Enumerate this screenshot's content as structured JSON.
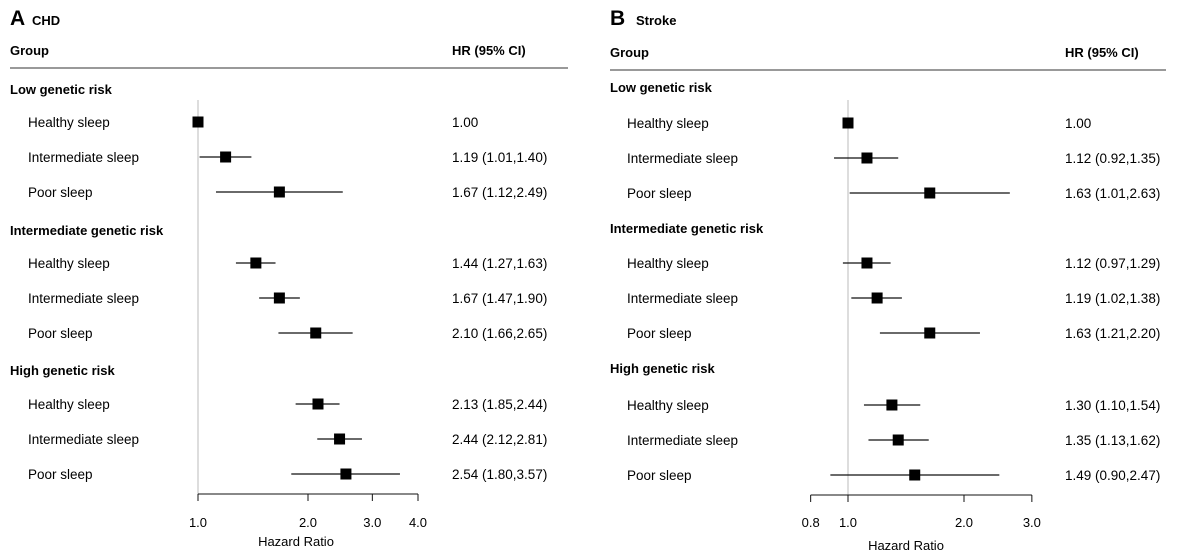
{
  "chart_data": [
    {
      "type": "forest",
      "panel_letter": "A",
      "title": "CHD",
      "header_group": "Group",
      "header_hr": "HR (95% CI)",
      "xlabel": "Hazard Ratio",
      "log_scale": true,
      "xlim": [
        1.0,
        4.0
      ],
      "reference_line": 1.0,
      "ticks": [
        1.0,
        2.0,
        3.0,
        4.0
      ],
      "tick_labels": [
        "1.0",
        "2.0",
        "3.0",
        "4.0"
      ],
      "groups": [
        {
          "name": "Low genetic risk",
          "rows": [
            {
              "label": "Healthy sleep",
              "hr": 1.0,
              "lo": 1.0,
              "hi": 1.0,
              "text": "1.00"
            },
            {
              "label": "Intermediate sleep",
              "hr": 1.19,
              "lo": 1.01,
              "hi": 1.4,
              "text": "1.19 (1.01,1.40)"
            },
            {
              "label": "Poor sleep",
              "hr": 1.67,
              "lo": 1.12,
              "hi": 2.49,
              "text": "1.67 (1.12,2.49)"
            }
          ]
        },
        {
          "name": "Intermediate genetic risk",
          "rows": [
            {
              "label": "Healthy sleep",
              "hr": 1.44,
              "lo": 1.27,
              "hi": 1.63,
              "text": "1.44 (1.27,1.63)"
            },
            {
              "label": "Intermediate sleep",
              "hr": 1.67,
              "lo": 1.47,
              "hi": 1.9,
              "text": "1.67 (1.47,1.90)"
            },
            {
              "label": "Poor sleep",
              "hr": 2.1,
              "lo": 1.66,
              "hi": 2.65,
              "text": "2.10 (1.66,2.65)"
            }
          ]
        },
        {
          "name": "High genetic risk",
          "rows": [
            {
              "label": "Healthy sleep",
              "hr": 2.13,
              "lo": 1.85,
              "hi": 2.44,
              "text": "2.13 (1.85,2.44)"
            },
            {
              "label": "Intermediate sleep",
              "hr": 2.44,
              "lo": 2.12,
              "hi": 2.81,
              "text": "2.44 (2.12,2.81)"
            },
            {
              "label": "Poor sleep",
              "hr": 2.54,
              "lo": 1.8,
              "hi": 3.57,
              "text": "2.54 (1.80,3.57)"
            }
          ]
        }
      ]
    },
    {
      "type": "forest",
      "panel_letter": "B",
      "title": "Stroke",
      "header_group": "Group",
      "header_hr": "HR (95% CI)",
      "xlabel": "Hazard Ratio",
      "log_scale": true,
      "xlim": [
        0.8,
        3.0
      ],
      "reference_line": 1.0,
      "ticks": [
        0.8,
        1.0,
        2.0,
        3.0
      ],
      "tick_labels": [
        "0.8",
        "1.0",
        "2.0",
        "3.0"
      ],
      "groups": [
        {
          "name": "Low genetic risk",
          "rows": [
            {
              "label": "Healthy sleep",
              "hr": 1.0,
              "lo": 1.0,
              "hi": 1.0,
              "text": "1.00"
            },
            {
              "label": "Intermediate sleep",
              "hr": 1.12,
              "lo": 0.92,
              "hi": 1.35,
              "text": "1.12 (0.92,1.35)"
            },
            {
              "label": "Poor sleep",
              "hr": 1.63,
              "lo": 1.01,
              "hi": 2.63,
              "text": "1.63 (1.01,2.63)"
            }
          ]
        },
        {
          "name": "Intermediate genetic risk",
          "rows": [
            {
              "label": "Healthy sleep",
              "hr": 1.12,
              "lo": 0.97,
              "hi": 1.29,
              "text": "1.12 (0.97,1.29)"
            },
            {
              "label": "Intermediate sleep",
              "hr": 1.19,
              "lo": 1.02,
              "hi": 1.38,
              "text": "1.19 (1.02,1.38)"
            },
            {
              "label": "Poor sleep",
              "hr": 1.63,
              "lo": 1.21,
              "hi": 2.2,
              "text": "1.63 (1.21,2.20)"
            }
          ]
        },
        {
          "name": "High genetic risk",
          "rows": [
            {
              "label": "Healthy sleep",
              "hr": 1.3,
              "lo": 1.1,
              "hi": 1.54,
              "text": "1.30 (1.10,1.54)"
            },
            {
              "label": "Intermediate sleep",
              "hr": 1.35,
              "lo": 1.13,
              "hi": 1.62,
              "text": "1.35 (1.13,1.62)"
            },
            {
              "label": "Poor sleep",
              "hr": 1.49,
              "lo": 0.9,
              "hi": 2.47,
              "text": "1.49 (0.90,2.47)"
            }
          ]
        }
      ]
    }
  ]
}
